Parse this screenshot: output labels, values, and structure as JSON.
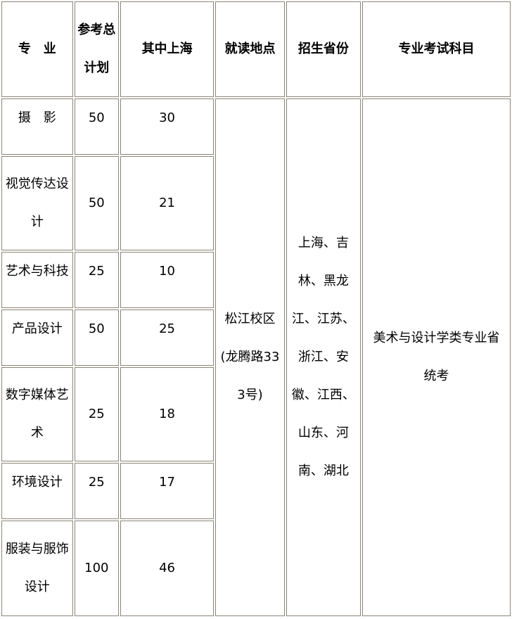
{
  "headers": [
    "专　业",
    "参考总计划",
    "其中上海",
    "就读地点",
    "招生省份",
    "专业考试科目"
  ],
  "rows": [
    {
      "major": "摄　影",
      "total": "50",
      "shanghai": "30"
    },
    {
      "major": "视觉传达设计",
      "total": "50",
      "shanghai": "21"
    },
    {
      "major": "艺术与科技",
      "total": "25",
      "shanghai": "10"
    },
    {
      "major": "产品设计",
      "total": "50",
      "shanghai": "25"
    },
    {
      "major": "数字媒体艺术",
      "total": "25",
      "shanghai": "18"
    },
    {
      "major": "环境设计",
      "total": "25",
      "shanghai": "17"
    },
    {
      "major": "服装与服饰设计",
      "total": "100",
      "shanghai": "46"
    }
  ],
  "location": "松江校区(龙腾路333号)",
  "provinces": "上海、吉林、黑龙江、江苏、浙江、安徽、江西、山东、河南、湖北",
  "exam": "美术与设计学类专业省统考"
}
